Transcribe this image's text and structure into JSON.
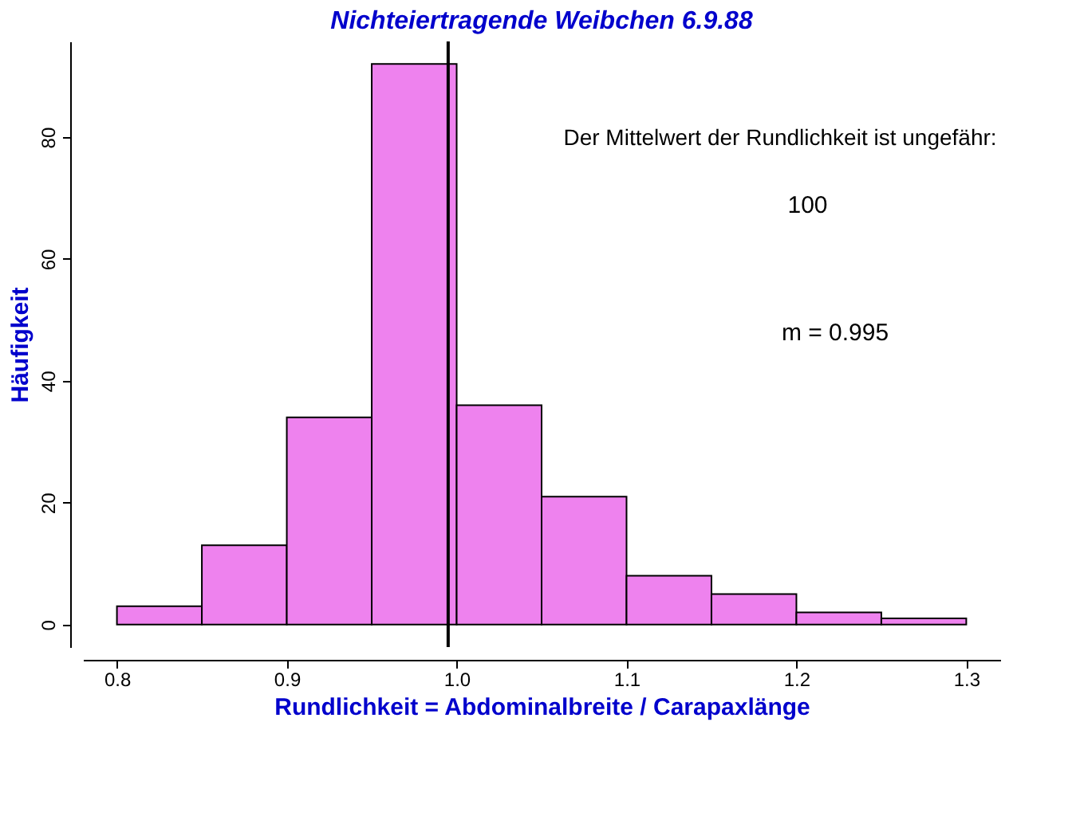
{
  "chart_data": {
    "type": "histogram",
    "title": "Nichteiertragende Weibchen 6.9.88",
    "xlabel": "Rundlichkeit = Abdominalbreite / Carapaxlänge",
    "ylabel": "Häufigkeit",
    "bins": [
      0.8,
      0.85,
      0.9,
      0.95,
      1.0,
      1.05,
      1.1,
      1.15,
      1.2,
      1.25,
      1.3
    ],
    "values": [
      3,
      13,
      34,
      92,
      36,
      21,
      8,
      5,
      2,
      1
    ],
    "color": "#ee82ee",
    "xlim": [
      0.78,
      1.32
    ],
    "xticks": [
      0.8,
      0.9,
      {
        "value": 1,
        "label": "1.0"
      },
      1.1,
      1.2,
      1.3
    ],
    "ylim": [
      -3.7,
      95.7
    ],
    "yticks": [
      0,
      20,
      40,
      60,
      80
    ],
    "ref_lines": [
      {
        "axis": "x",
        "value": 0.995,
        "color": "#000000"
      }
    ],
    "annotations": [
      "Der Mittelwert der Rundlichkeit ist ungefähr:",
      "100",
      "m = 0.995"
    ],
    "grid": false
  }
}
